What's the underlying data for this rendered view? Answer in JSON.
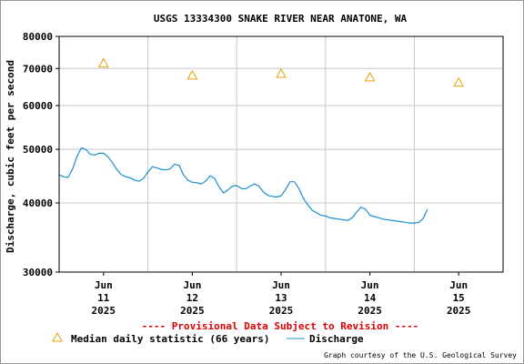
{
  "chart_data": {
    "type": "line",
    "title": "USGS 13334300 SNAKE RIVER NEAR ANATONE, WA",
    "ylabel": "Discharge, cubic feet per second",
    "xlabel": "",
    "y_scale": "log",
    "ylim": [
      30000,
      80000
    ],
    "y_ticks": [
      30000,
      40000,
      50000,
      60000,
      70000,
      80000
    ],
    "y_tick_labels": [
      "30000",
      "40000",
      "50000",
      "60000",
      "70000",
      "80000"
    ],
    "x_range_days": [
      10.5,
      15.5
    ],
    "x_ticks": [
      {
        "day": 11,
        "label": [
          "Jun",
          "11",
          "2025"
        ]
      },
      {
        "day": 12,
        "label": [
          "Jun",
          "12",
          "2025"
        ]
      },
      {
        "day": 13,
        "label": [
          "Jun",
          "13",
          "2025"
        ]
      },
      {
        "day": 14,
        "label": [
          "Jun",
          "14",
          "2025"
        ]
      },
      {
        "day": 15,
        "label": [
          "Jun",
          "15",
          "2025"
        ]
      }
    ],
    "grid": true,
    "series": [
      {
        "name": "Discharge",
        "color": "#1a8fcf",
        "x_day": [
          10.5,
          10.55,
          10.6,
          10.65,
          10.7,
          10.75,
          10.8,
          10.85,
          10.9,
          10.95,
          11.0,
          11.05,
          11.1,
          11.15,
          11.2,
          11.25,
          11.3,
          11.35,
          11.4,
          11.45,
          11.5,
          11.55,
          11.6,
          11.65,
          11.7,
          11.75,
          11.8,
          11.85,
          11.9,
          11.95,
          12.0,
          12.05,
          12.1,
          12.15,
          12.2,
          12.25,
          12.3,
          12.35,
          12.4,
          12.45,
          12.5,
          12.55,
          12.6,
          12.65,
          12.7,
          12.75,
          12.8,
          12.85,
          12.9,
          12.95,
          13.0,
          13.05,
          13.1,
          13.15,
          13.2,
          13.25,
          13.3,
          13.35,
          13.4,
          13.45,
          13.5,
          13.55,
          13.6,
          13.65,
          13.7,
          13.75,
          13.8,
          13.85,
          13.9,
          13.95,
          14.0,
          14.05,
          14.1,
          14.15,
          14.2,
          14.25,
          14.3,
          14.35,
          14.4,
          14.45,
          14.5,
          14.55,
          14.6,
          14.65
        ],
        "values": [
          45000,
          44600,
          44500,
          46000,
          48500,
          50300,
          50000,
          49000,
          48800,
          49200,
          49200,
          48500,
          47300,
          46000,
          45000,
          44600,
          44400,
          44000,
          43800,
          44300,
          45500,
          46500,
          46300,
          46000,
          45900,
          46100,
          47000,
          46800,
          45000,
          44000,
          43600,
          43500,
          43300,
          43800,
          44800,
          44300,
          42800,
          41700,
          42200,
          42900,
          43000,
          42500,
          42400,
          42900,
          43300,
          42900,
          41900,
          41300,
          41100,
          41000,
          41200,
          42300,
          43700,
          43700,
          42500,
          40800,
          39700,
          38800,
          38400,
          38000,
          37900,
          37600,
          37500,
          37400,
          37300,
          37200,
          37600,
          38500,
          39300,
          39000,
          38000,
          37800,
          37600,
          37400,
          37300,
          37200,
          37100,
          37000,
          36900,
          36800,
          36800,
          36900,
          37500,
          39000
        ]
      }
    ],
    "markers": {
      "name": "Median daily statistic (66 years)",
      "color": "#e8a000",
      "x_day": [
        11,
        12,
        13,
        14,
        15
      ],
      "values": [
        71500,
        68000,
        68500,
        67500,
        66000
      ]
    },
    "subtitle": "---- Provisional Data Subject to Revision ----",
    "subtitle_color": "#dd0000",
    "legend_placement": "bottom-left",
    "credit": "Graph courtesy of the U.S. Geological Survey"
  }
}
